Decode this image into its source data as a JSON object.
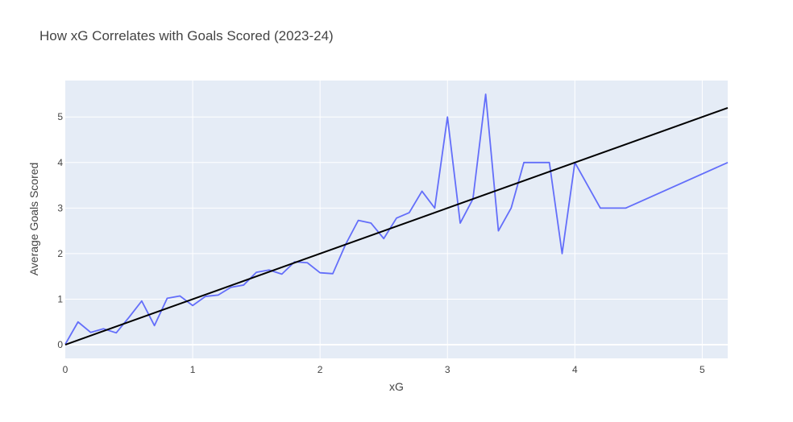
{
  "chart_data": {
    "type": "line",
    "title": "How xG Correlates with Goals Scored (2023-24)",
    "xlabel": "xG",
    "ylabel": "Average Goals Scored",
    "xlim": [
      0,
      5.2
    ],
    "ylim": [
      -0.3,
      5.8
    ],
    "x_ticks": [
      0,
      1,
      2,
      3,
      4,
      5
    ],
    "y_ticks": [
      0,
      1,
      2,
      3,
      4,
      5
    ],
    "grid": true,
    "colors": {
      "plot_bg": "#E5ECF6",
      "grid": "#ffffff",
      "series": "#636EFA",
      "reference": "#000000"
    },
    "series": [
      {
        "x": [
          0,
          0.1,
          0.2,
          0.3,
          0.4,
          0.5,
          0.6,
          0.7,
          0.8,
          0.9,
          1.0,
          1.1,
          1.2,
          1.3,
          1.4,
          1.5,
          1.6,
          1.7,
          1.8,
          1.9,
          2.0,
          2.1,
          2.2,
          2.3,
          2.4,
          2.5,
          2.6,
          2.7,
          2.8,
          2.9,
          3.0,
          3.1,
          3.2,
          3.3,
          3.4,
          3.5,
          3.6,
          3.7,
          3.8,
          3.9,
          4.0,
          4.2,
          4.4,
          5.2
        ],
        "y": [
          0.01,
          0.5,
          0.27,
          0.35,
          0.26,
          0.6,
          0.96,
          0.42,
          1.02,
          1.07,
          0.86,
          1.06,
          1.09,
          1.26,
          1.31,
          1.59,
          1.64,
          1.55,
          1.82,
          1.8,
          1.58,
          1.56,
          2.2,
          2.73,
          2.67,
          2.33,
          2.78,
          2.9,
          3.37,
          3.0,
          5.0,
          2.67,
          3.2,
          5.5,
          2.5,
          3.0,
          4.0,
          4.0,
          4.0,
          2.0,
          4.0,
          3.0,
          3.0,
          4.0
        ]
      },
      {
        "x": [
          0,
          5.2
        ],
        "y": [
          0,
          5.2
        ]
      }
    ]
  }
}
